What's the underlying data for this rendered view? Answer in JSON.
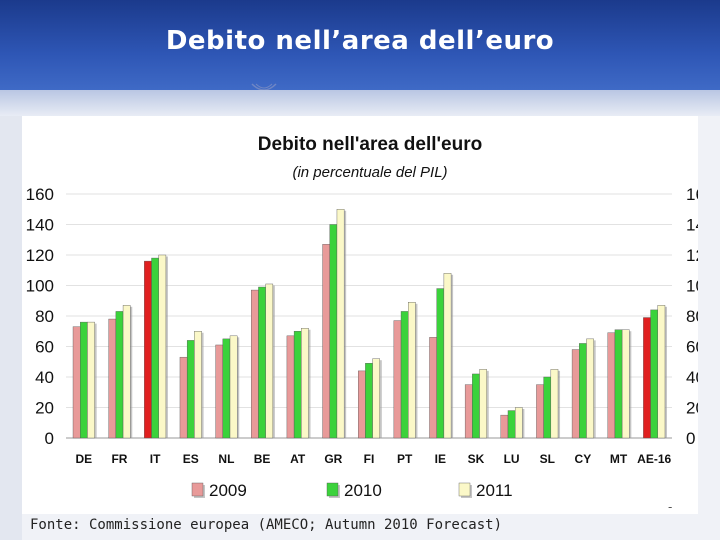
{
  "header": {
    "title": "Debito nell’area dell’euro"
  },
  "source": "Fonte: Commissione europea (AMECO; Autumn 2010 Forecast)",
  "footer_mark": "-",
  "colors": {
    "banner": "#2e56b5",
    "bar_2009": "#e89a99",
    "bar_2009_highlight": "#e02020",
    "bar_2010": "#3bd23b",
    "bar_2011": "#fbf8c8"
  },
  "chart_data": {
    "type": "bar",
    "title": "Debito nell'area dell'euro",
    "subtitle": "(in percentuale del PIL)",
    "categories": [
      "DE",
      "FR",
      "IT",
      "ES",
      "NL",
      "BE",
      "AT",
      "GR",
      "FI",
      "PT",
      "IE",
      "SK",
      "LU",
      "SL",
      "CY",
      "MT",
      "AE-16"
    ],
    "series": [
      {
        "name": "2009",
        "values": [
          73,
          78,
          116,
          53,
          61,
          97,
          67,
          127,
          44,
          77,
          66,
          35,
          15,
          35,
          58,
          69,
          79
        ]
      },
      {
        "name": "2010",
        "values": [
          76,
          83,
          118,
          64,
          65,
          99,
          70,
          140,
          49,
          83,
          98,
          42,
          18,
          40,
          62,
          71,
          84
        ]
      },
      {
        "name": "2011",
        "values": [
          76,
          87,
          120,
          70,
          67,
          101,
          72,
          150,
          52,
          89,
          108,
          45,
          20,
          45,
          65,
          71,
          87
        ]
      }
    ],
    "highlight_2009": [
      "IT",
      "AE-16"
    ],
    "ylim": [
      0,
      160
    ],
    "yticks": [
      0,
      20,
      40,
      60,
      80,
      100,
      120,
      140,
      160
    ],
    "y_axis_both_sides": true,
    "legend_position": "bottom"
  }
}
